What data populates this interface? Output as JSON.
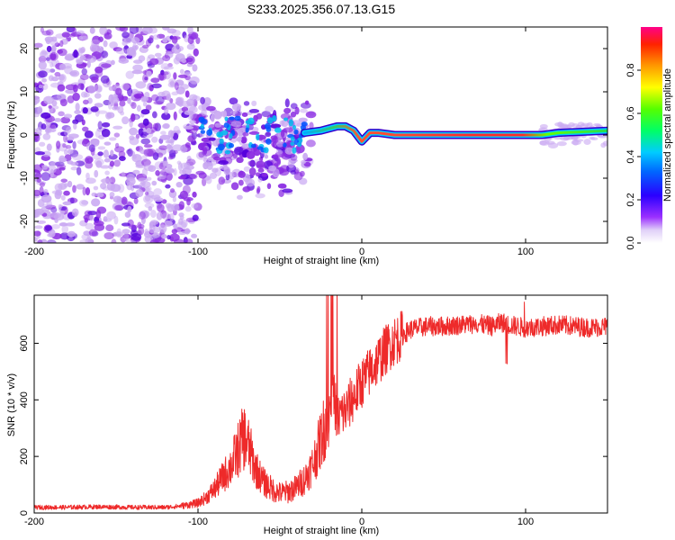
{
  "title": "S233.2025.356.07.13.G15",
  "colors": {
    "snr_line": "#ee2a2a",
    "frame": "#000000",
    "spectrum_faint": "#c9a8f2",
    "spectrum_mid": "#8a2be2",
    "spectrum_strong": "#5500dd"
  },
  "chart_data": [
    {
      "type": "heatmap",
      "name": "spectral-plot",
      "xlabel": "Height of straight line (km)",
      "ylabel": "Frequency (Hz)",
      "xlim": [
        -200,
        150
      ],
      "ylim": [
        -25,
        25
      ],
      "x_ticks": [
        -200,
        -100,
        0,
        100
      ],
      "x_tick_labels": [
        "-200",
        "-100",
        "0",
        "100"
      ],
      "y_ticks": [
        -20,
        -10,
        0,
        10,
        20
      ],
      "y_tick_labels": [
        "-20",
        "-10",
        "0",
        "10",
        "20"
      ],
      "colorbar": {
        "label": "Normalized spectral amplitude",
        "range": [
          0,
          1
        ],
        "ticks": [
          0.0,
          0.2,
          0.4,
          0.6,
          0.8
        ],
        "tick_labels": [
          "0.0",
          "0.2",
          "0.4",
          "0.6",
          "0.8"
        ]
      },
      "ridge": {
        "description": "dominant frequency track",
        "x": [
          -35,
          -25,
          -15,
          -10,
          -5,
          0,
          5,
          10,
          20,
          40,
          60,
          80,
          100,
          110,
          120,
          150
        ],
        "freq": [
          0.5,
          1.0,
          2.0,
          2.0,
          1.0,
          -1.5,
          0.5,
          0.5,
          0.0,
          0.0,
          0.0,
          0.0,
          0.0,
          0.0,
          0.5,
          1.0
        ],
        "amplitude": [
          0.2,
          0.25,
          0.35,
          0.4,
          0.45,
          0.6,
          0.7,
          0.85,
          0.95,
          0.95,
          0.95,
          0.95,
          0.9,
          0.6,
          0.45,
          0.45
        ]
      }
    },
    {
      "type": "line",
      "name": "snr-plot",
      "xlabel": "Height of straight line (km)",
      "ylabel": "SNR (10 * v/v)",
      "xlim": [
        -200,
        150
      ],
      "ylim": [
        0,
        770
      ],
      "x_ticks": [
        -200,
        -100,
        0,
        100
      ],
      "x_tick_labels": [
        "-200",
        "-100",
        "0",
        "100"
      ],
      "y_ticks": [
        0,
        200,
        400,
        600
      ],
      "y_tick_labels": [
        "0",
        "200",
        "400",
        "600"
      ],
      "series": [
        {
          "name": "SNR",
          "x": [
            -200,
            -180,
            -160,
            -140,
            -120,
            -110,
            -100,
            -95,
            -90,
            -85,
            -80,
            -75,
            -72,
            -70,
            -65,
            -60,
            -55,
            -50,
            -45,
            -40,
            -35,
            -30,
            -25,
            -20,
            -18,
            -15,
            -10,
            -5,
            0,
            5,
            10,
            15,
            20,
            25,
            30,
            40,
            50,
            60,
            70,
            80,
            85,
            90,
            100,
            110,
            120,
            130,
            140,
            150
          ],
          "values": [
            20,
            20,
            22,
            20,
            20,
            25,
            35,
            55,
            85,
            125,
            165,
            230,
            270,
            250,
            160,
            110,
            85,
            70,
            75,
            90,
            120,
            170,
            260,
            360,
            440,
            340,
            360,
            410,
            460,
            500,
            540,
            580,
            610,
            630,
            650,
            660,
            660,
            665,
            670,
            660,
            675,
            665,
            655,
            660,
            665,
            660,
            655,
            660
          ]
        }
      ]
    }
  ]
}
